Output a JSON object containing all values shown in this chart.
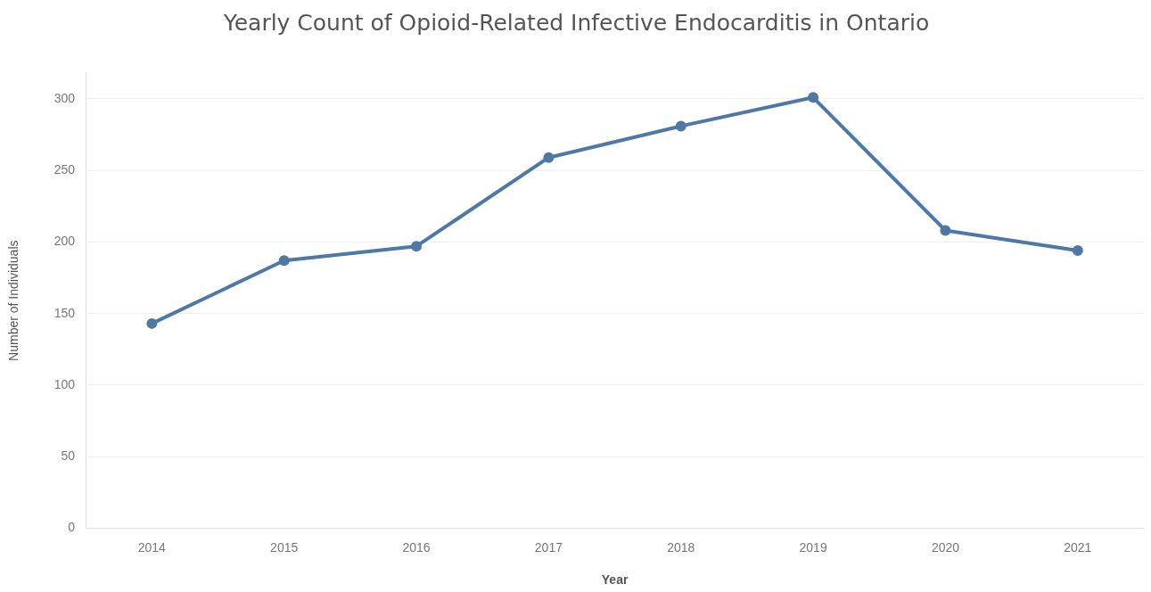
{
  "chart_data": {
    "type": "line",
    "title": "Yearly Count of Opioid-Related Infective Endocarditis in Ontario",
    "xlabel": "Year",
    "ylabel": "Number of Individuals",
    "categories": [
      "2014",
      "2015",
      "2016",
      "2017",
      "2018",
      "2019",
      "2020",
      "2021"
    ],
    "series": [
      {
        "color": "#4e79a7",
        "values": [
          143,
          187,
          197,
          259,
          281,
          301,
          208,
          194
        ]
      }
    ],
    "ylim": [
      0,
      318
    ],
    "yticks": [
      0,
      50,
      100,
      150,
      200,
      250,
      300
    ],
    "grid": "y",
    "legend": false,
    "marker": "circle",
    "line_style": "solid"
  }
}
